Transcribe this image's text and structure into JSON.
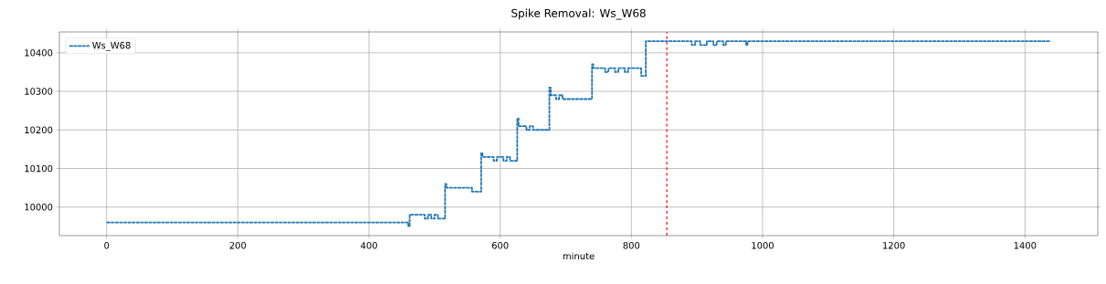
{
  "chart_data": {
    "type": "step",
    "title": "Spike Removal: Ws_W68",
    "xlabel": "minute",
    "x": [
      0,
      460,
      462,
      485,
      490,
      495,
      500,
      505,
      516,
      518,
      557,
      571,
      573,
      590,
      595,
      605,
      610,
      615,
      626,
      628,
      640,
      645,
      650,
      675,
      677,
      685,
      690,
      695,
      740,
      742,
      760,
      765,
      775,
      780,
      790,
      795,
      815,
      822,
      892,
      897,
      905,
      915,
      925,
      930,
      940,
      944,
      975,
      977,
      1439
    ],
    "series": [
      {
        "name": "Ws_W68",
        "color": "#1f77b4",
        "values": [
          9960,
          9950,
          9980,
          9970,
          9980,
          9970,
          9980,
          9970,
          10060,
          10050,
          10040,
          10140,
          10130,
          10120,
          10130,
          10120,
          10130,
          10120,
          10230,
          10210,
          10200,
          10210,
          10200,
          10310,
          10290,
          10280,
          10290,
          10280,
          10370,
          10360,
          10350,
          10360,
          10350,
          10360,
          10350,
          10360,
          10340,
          10430,
          10420,
          10430,
          10420,
          10430,
          10420,
          10430,
          10420,
          10430,
          10420,
          10430,
          10430
        ]
      }
    ],
    "xlim": [
      -72,
      1511
    ],
    "ylim": [
      9926,
      10454
    ],
    "xticks": [
      0,
      200,
      400,
      600,
      800,
      1000,
      1200,
      1400
    ],
    "yticks": [
      10000,
      10100,
      10200,
      10300,
      10400
    ],
    "grid": true,
    "legend": "top left",
    "line_style": "dashed",
    "marker": "none",
    "ref_lines": [
      {
        "axis": "x",
        "value": 854,
        "color": "#ff0000",
        "line_style": "dashed"
      }
    ]
  }
}
